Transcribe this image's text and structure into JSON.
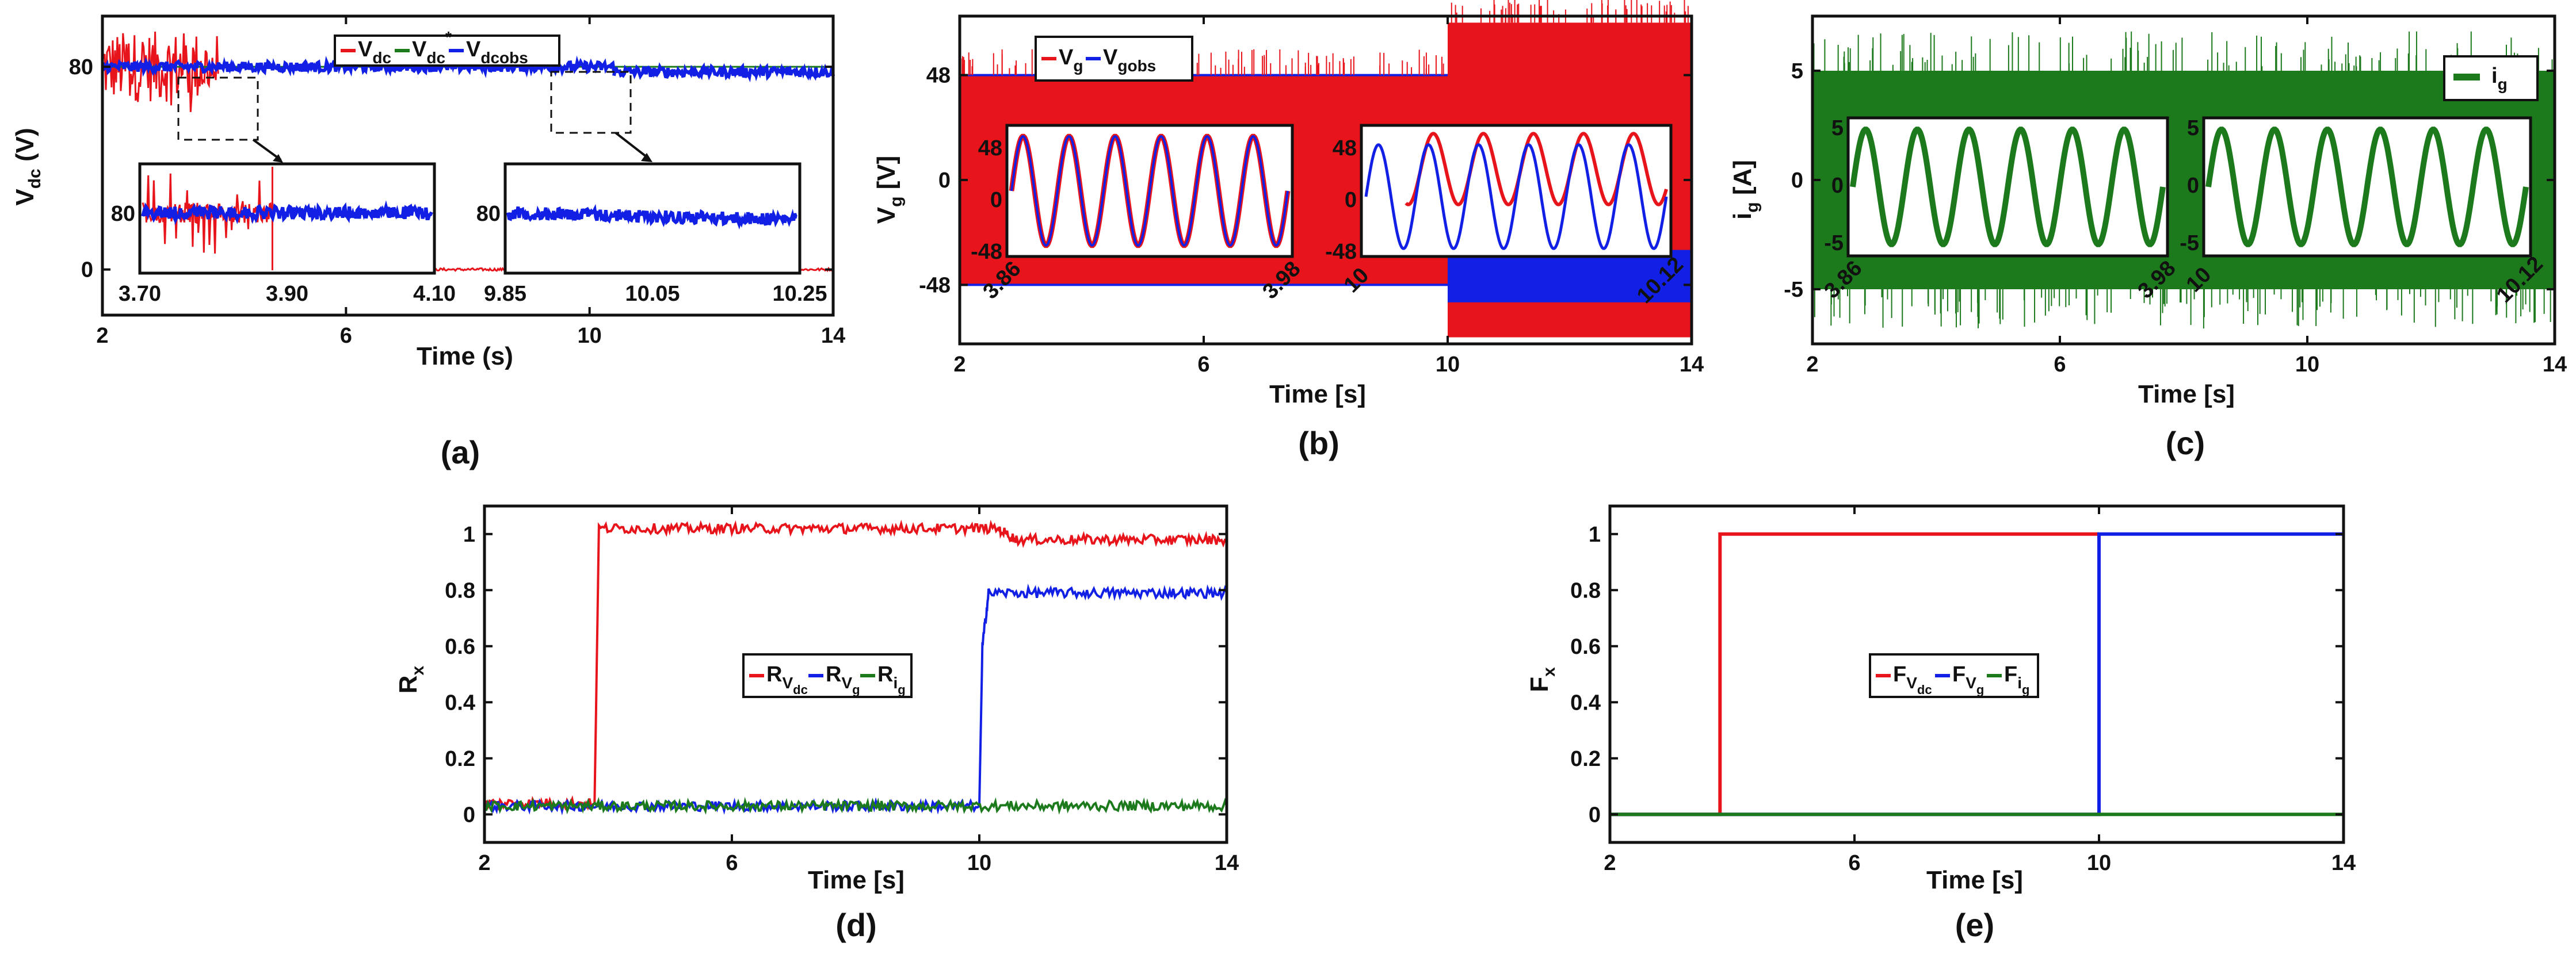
{
  "colors": {
    "red": "#e8141b",
    "blue": "#1220e6",
    "green": "#1c7a1c",
    "black": "#111111"
  },
  "chart_data": [
    {
      "panel": "(a)",
      "type": "line",
      "xlabel": "Time (s)",
      "ylabel_main": "V",
      "ylabel_sub": "dc",
      "ylabel_unit": " (V)",
      "xlim": [
        2,
        14
      ],
      "ylim": [
        -18,
        100
      ],
      "xticks": [
        2,
        6,
        10,
        14
      ],
      "yticks": [
        0,
        80
      ],
      "legend": [
        {
          "name": "V",
          "sub": "dc",
          "sup": "",
          "color": "red"
        },
        {
          "name": "V",
          "sub": "dc",
          "sup": "*",
          "color": "green"
        },
        {
          "name": "V",
          "sub": "dcobs",
          "sup": "",
          "color": "blue"
        }
      ],
      "series": [
        {
          "name": "Vdc",
          "color": "red",
          "segments": [
            {
              "x": [
                2,
                3.9
              ],
              "level": 80,
              "noise": 14
            },
            {
              "x": [
                3.9,
                14
              ],
              "level": 0,
              "noise": 0.5
            }
          ]
        },
        {
          "name": "Vdc*",
          "color": "green",
          "segments": [
            {
              "x": [
                2,
                14
              ],
              "level": 80,
              "noise": 0
            }
          ]
        },
        {
          "name": "Vdcobs",
          "color": "blue",
          "segments": [
            {
              "x": [
                2,
                10.4
              ],
              "level": 80,
              "noise": 2
            },
            {
              "x": [
                10.4,
                14
              ],
              "level": 78,
              "noise": 2
            }
          ]
        }
      ],
      "insets": [
        {
          "xticks": [
            "3.70",
            "3.90",
            "4.10"
          ],
          "ytick": "80"
        },
        {
          "xticks": [
            "9.85",
            "10.05",
            "10.25"
          ],
          "ytick": "80"
        }
      ]
    },
    {
      "panel": "(b)",
      "type": "line",
      "xlabel": "Time [s]",
      "ylabel_main": "V",
      "ylabel_sub": "g",
      "ylabel_unit": " [V]",
      "xlim": [
        2,
        14
      ],
      "ylim": [
        -75,
        75
      ],
      "xticks": [
        2,
        6,
        10,
        14
      ],
      "yticks": [
        48,
        0,
        -48
      ],
      "legend": [
        {
          "name": "V",
          "sub": "g",
          "color": "red"
        },
        {
          "name": "V",
          "sub": "gobs",
          "color": "blue"
        }
      ],
      "series": [
        {
          "name": "Vg",
          "color": "red",
          "amplitude": [
            {
              "x": [
                2,
                10
              ],
              "amp": 48
            },
            {
              "x": [
                10,
                14
              ],
              "amp": 72
            }
          ]
        },
        {
          "name": "Vgobs",
          "color": "blue",
          "amplitude": [
            {
              "x": [
                2,
                14
              ],
              "amp": 48
            }
          ]
        }
      ],
      "insets": [
        {
          "xticks": [
            "3.86",
            "3.98"
          ],
          "yticks": [
            "48",
            "0",
            "-48"
          ]
        },
        {
          "xticks": [
            "10",
            "10.12"
          ],
          "yticks": [
            "48",
            "0",
            "-48"
          ]
        }
      ]
    },
    {
      "panel": "(c)",
      "type": "line",
      "xlabel": "Time [s]",
      "ylabel_main": "i",
      "ylabel_sub": "g",
      "ylabel_unit": " [A]",
      "xlim": [
        2,
        14
      ],
      "ylim": [
        -7.5,
        7.5
      ],
      "xticks": [
        2,
        6,
        10,
        14
      ],
      "yticks": [
        5,
        0,
        -5
      ],
      "legend": [
        {
          "name": "i",
          "sub": "g",
          "color": "green"
        }
      ],
      "series": [
        {
          "name": "ig",
          "color": "green",
          "amplitude": [
            {
              "x": [
                2,
                14
              ],
              "amp": 5
            }
          ]
        }
      ],
      "insets": [
        {
          "xticks": [
            "3.86",
            "3.98"
          ],
          "yticks": [
            "5",
            "0",
            "-5"
          ]
        },
        {
          "xticks": [
            "10",
            "10.12"
          ],
          "yticks": [
            "5",
            "0",
            "-5"
          ]
        }
      ]
    },
    {
      "panel": "(d)",
      "type": "line",
      "xlabel": "Time [s]",
      "ylabel_main": "R",
      "ylabel_sub": "x",
      "ylabel_unit": "",
      "xlim": [
        2,
        14
      ],
      "ylim": [
        -0.1,
        1.1
      ],
      "xticks": [
        2,
        6,
        10,
        14
      ],
      "yticks": [
        0,
        0.2,
        0.4,
        0.6,
        0.8,
        1
      ],
      "yticklabels": [
        "0",
        "0.2",
        "0.4",
        "0.6",
        "0.8",
        "1"
      ],
      "legend": [
        {
          "name": "R",
          "sub": "V",
          "subsub": "dc",
          "color": "red"
        },
        {
          "name": "R",
          "sub": "V",
          "subsub": "g",
          "color": "blue"
        },
        {
          "name": "R",
          "sub": "i",
          "subsub": "g",
          "color": "green"
        }
      ],
      "series": [
        {
          "name": "RVdc",
          "color": "red",
          "points": [
            [
              2,
              0.04
            ],
            [
              3.78,
              0.04
            ],
            [
              3.85,
              1.02
            ],
            [
              10.3,
              1.02
            ],
            [
              10.6,
              0.98
            ],
            [
              14,
              0.98
            ]
          ]
        },
        {
          "name": "RVg",
          "color": "blue",
          "points": [
            [
              2,
              0.03
            ],
            [
              10,
              0.03
            ],
            [
              10.05,
              0.6
            ],
            [
              10.15,
              0.79
            ],
            [
              14,
              0.79
            ]
          ]
        },
        {
          "name": "Rig",
          "color": "green",
          "points": [
            [
              2,
              0.03
            ],
            [
              14,
              0.03
            ]
          ]
        }
      ]
    },
    {
      "panel": "(e)",
      "type": "line",
      "xlabel": "Time [s]",
      "ylabel_main": "F",
      "ylabel_sub": "x",
      "ylabel_unit": "",
      "xlim": [
        2,
        14
      ],
      "ylim": [
        -0.1,
        1.1
      ],
      "xticks": [
        2,
        6,
        10,
        14
      ],
      "yticks": [
        0,
        0.2,
        0.4,
        0.6,
        0.8,
        1
      ],
      "yticklabels": [
        "0",
        "0.2",
        "0.4",
        "0.6",
        "0.8",
        "1"
      ],
      "legend": [
        {
          "name": "F",
          "sub": "V",
          "subsub": "dc",
          "color": "red"
        },
        {
          "name": "F",
          "sub": "V",
          "subsub": "g",
          "color": "blue"
        },
        {
          "name": "F",
          "sub": "i",
          "subsub": "g",
          "color": "green"
        }
      ],
      "series": [
        {
          "name": "FVdc",
          "color": "red",
          "points": [
            [
              2,
              0
            ],
            [
              3.8,
              0
            ],
            [
              3.8,
              1
            ],
            [
              10,
              1
            ]
          ]
        },
        {
          "name": "FVg",
          "color": "blue",
          "points": [
            [
              2,
              0
            ],
            [
              10,
              0
            ],
            [
              10,
              1
            ],
            [
              14,
              1
            ]
          ]
        },
        {
          "name": "Fig",
          "color": "green",
          "points": [
            [
              2,
              0
            ],
            [
              14,
              0
            ]
          ]
        }
      ]
    }
  ]
}
